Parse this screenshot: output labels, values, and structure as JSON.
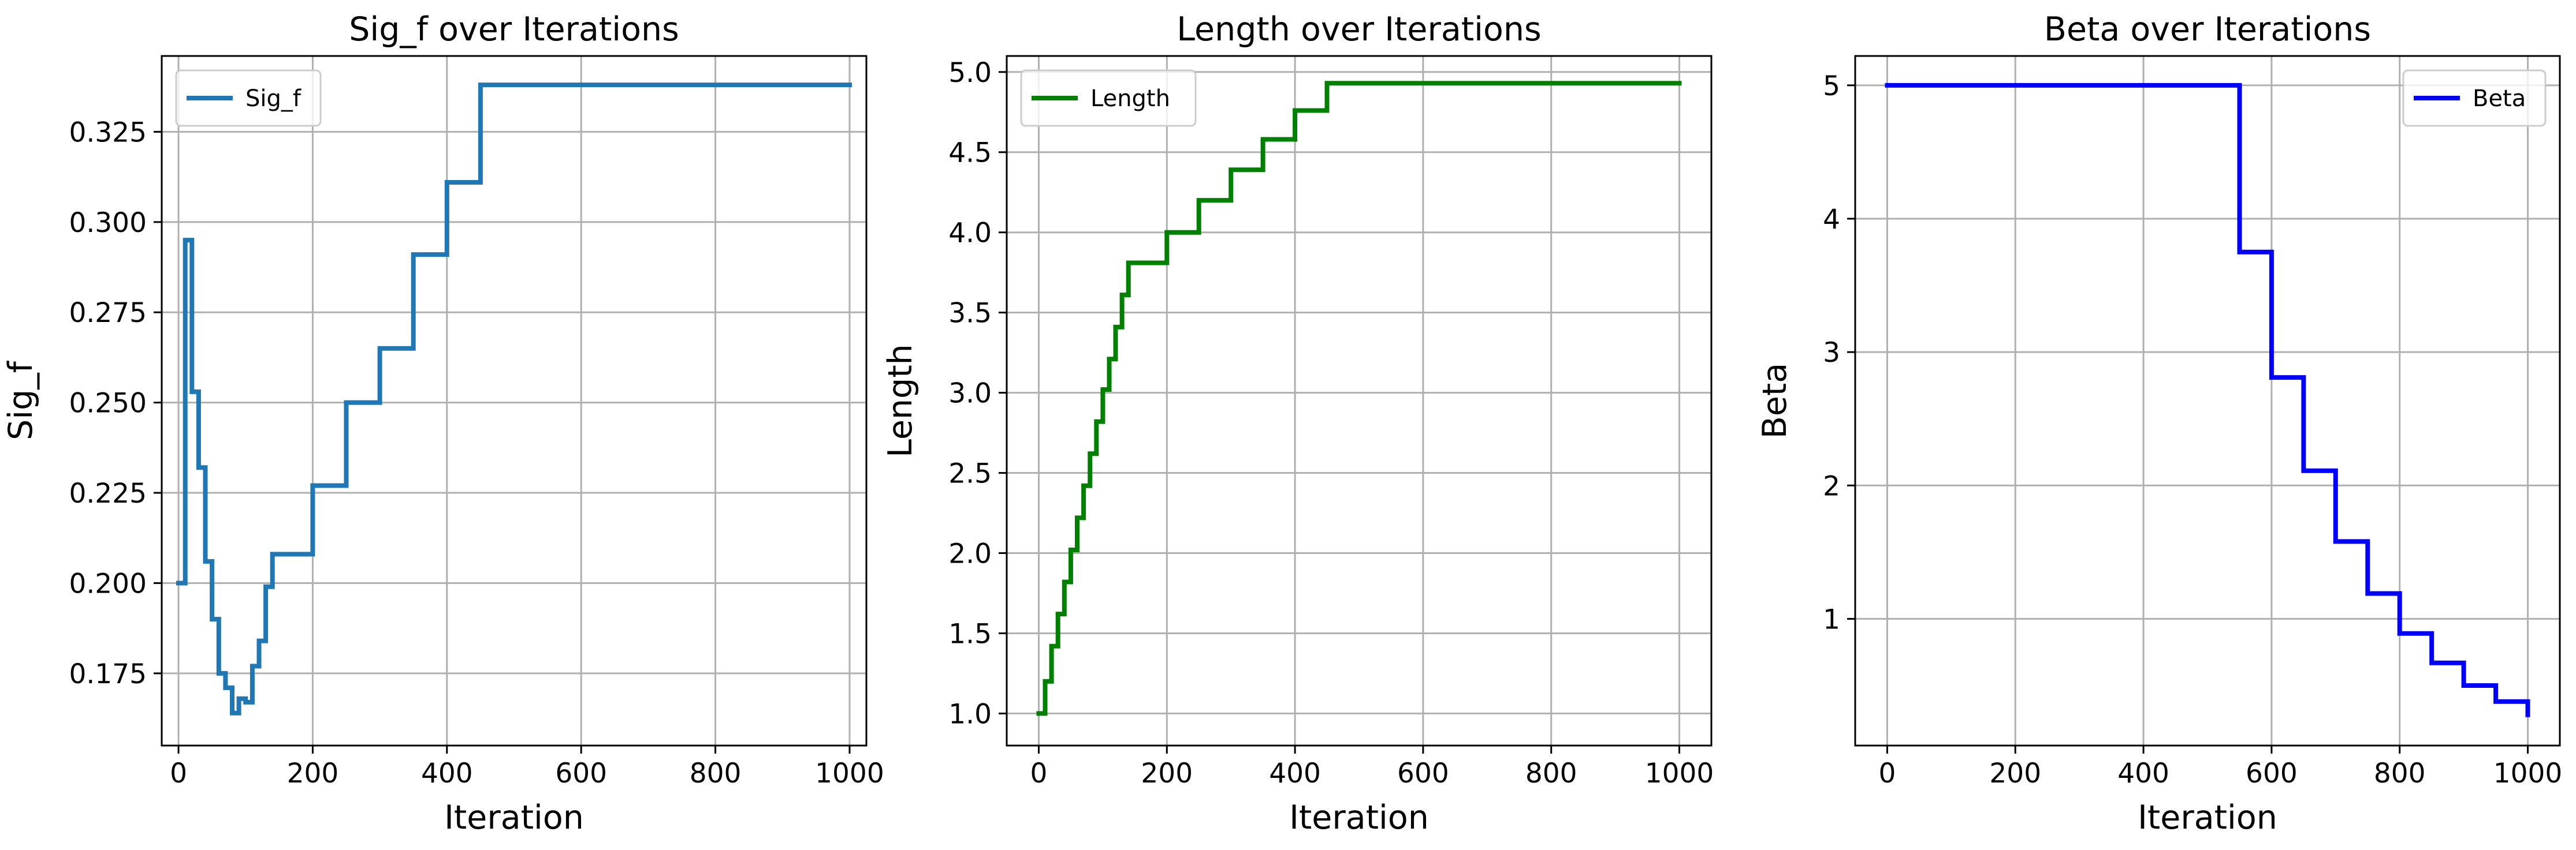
{
  "chart_data": [
    {
      "type": "line",
      "title": "Sig_f over Iterations",
      "xlabel": "Iteration",
      "ylabel": "Sig_f",
      "xlim": [
        -25,
        1025
      ],
      "ylim": [
        0.155,
        0.346
      ],
      "xticks": [
        0,
        200,
        400,
        600,
        800,
        1000
      ],
      "yticks": [
        0.175,
        0.2,
        0.225,
        0.25,
        0.275,
        0.3,
        0.325
      ],
      "ytick_labels": [
        "0.175",
        "0.200",
        "0.225",
        "0.250",
        "0.275",
        "0.300",
        "0.325"
      ],
      "grid": true,
      "legend_position": "upper-left",
      "series": [
        {
          "name": "Sig_f",
          "color": "#1f77b4",
          "x": [
            0,
            10,
            10,
            20,
            20,
            30,
            30,
            40,
            40,
            50,
            50,
            60,
            60,
            70,
            70,
            80,
            80,
            90,
            90,
            100,
            100,
            110,
            110,
            120,
            120,
            130,
            130,
            140,
            140,
            200,
            200,
            250,
            250,
            300,
            300,
            350,
            350,
            400,
            400,
            450,
            450,
            1000
          ],
          "y": [
            0.2,
            0.2,
            0.295,
            0.295,
            0.253,
            0.253,
            0.232,
            0.232,
            0.206,
            0.206,
            0.19,
            0.19,
            0.175,
            0.175,
            0.171,
            0.171,
            0.164,
            0.164,
            0.168,
            0.168,
            0.167,
            0.167,
            0.177,
            0.177,
            0.184,
            0.184,
            0.199,
            0.199,
            0.208,
            0.208,
            0.227,
            0.227,
            0.25,
            0.25,
            0.265,
            0.265,
            0.291,
            0.291,
            0.311,
            0.311,
            0.338,
            0.338
          ]
        }
      ]
    },
    {
      "type": "line",
      "title": "Length over Iterations",
      "xlabel": "Iteration",
      "ylabel": "Length",
      "xlim": [
        -50,
        1050
      ],
      "ylim": [
        0.8,
        5.1
      ],
      "xticks": [
        0,
        200,
        400,
        600,
        800,
        1000
      ],
      "yticks": [
        1.0,
        1.5,
        2.0,
        2.5,
        3.0,
        3.5,
        4.0,
        4.5,
        5.0
      ],
      "ytick_labels": [
        "1.0",
        "1.5",
        "2.0",
        "2.5",
        "3.0",
        "3.5",
        "4.0",
        "4.5",
        "5.0"
      ],
      "grid": true,
      "legend_position": "upper-left",
      "series": [
        {
          "name": "Length",
          "color": "#008000",
          "x": [
            0,
            10,
            10,
            20,
            20,
            30,
            30,
            40,
            40,
            50,
            50,
            60,
            60,
            70,
            70,
            80,
            80,
            90,
            90,
            100,
            100,
            110,
            110,
            120,
            120,
            130,
            130,
            140,
            140,
            200,
            200,
            250,
            250,
            300,
            300,
            350,
            350,
            400,
            400,
            450,
            450,
            1000
          ],
          "y": [
            1.0,
            1.0,
            1.2,
            1.2,
            1.42,
            1.42,
            1.62,
            1.62,
            1.82,
            1.82,
            2.02,
            2.02,
            2.22,
            2.22,
            2.42,
            2.42,
            2.62,
            2.62,
            2.82,
            2.82,
            3.02,
            3.02,
            3.21,
            3.21,
            3.41,
            3.41,
            3.61,
            3.61,
            3.81,
            3.81,
            4.0,
            4.0,
            4.2,
            4.2,
            4.39,
            4.39,
            4.58,
            4.58,
            4.76,
            4.76,
            4.93,
            4.93
          ]
        }
      ]
    },
    {
      "type": "line",
      "title": "Beta over Iterations",
      "xlabel": "Iteration",
      "ylabel": "Beta",
      "xlim": [
        -50,
        1050
      ],
      "ylim": [
        0.05,
        5.22
      ],
      "xticks": [
        0,
        200,
        400,
        600,
        800,
        1000
      ],
      "yticks": [
        1,
        2,
        3,
        4,
        5
      ],
      "ytick_labels": [
        "1",
        "2",
        "3",
        "4",
        "5"
      ],
      "grid": true,
      "legend_position": "upper-right",
      "series": [
        {
          "name": "Beta",
          "color": "#0000ff",
          "x": [
            0,
            550,
            550,
            600,
            600,
            650,
            650,
            700,
            700,
            750,
            750,
            800,
            800,
            850,
            850,
            900,
            900,
            950,
            950,
            1000,
            1000
          ],
          "y": [
            5.0,
            5.0,
            3.75,
            3.75,
            2.81,
            2.81,
            2.11,
            2.11,
            1.58,
            1.58,
            1.19,
            1.19,
            0.89,
            0.89,
            0.67,
            0.67,
            0.5,
            0.5,
            0.38,
            0.38,
            0.28
          ]
        }
      ]
    }
  ]
}
